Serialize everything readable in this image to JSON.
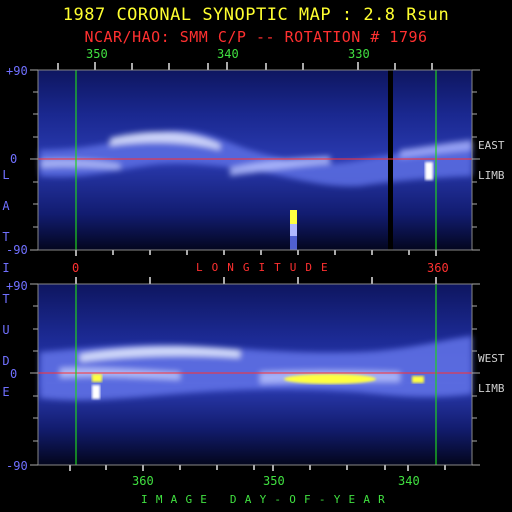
{
  "header": {
    "title": "1987 CORONAL SYNOPTIC MAP : 2.8 Rsun",
    "subtitle": "NCAR/HAO: SMM C/P -- ROTATION # 1796"
  },
  "top_panel": {
    "top_ticks": [
      "350",
      "340",
      "330"
    ],
    "y_ticks": [
      "+90",
      "0",
      "-90"
    ],
    "bottom_ticks": [
      "0",
      "360"
    ],
    "side_label_line1": "EAST",
    "side_label_line2": "LIMB"
  },
  "bottom_panel": {
    "y_ticks": [
      "+90",
      "0",
      "-90"
    ],
    "bottom_ticks": [
      "360",
      "350",
      "340"
    ],
    "side_label_line1": "WEST",
    "side_label_line2": "LIMB"
  },
  "axis_labels": {
    "longitude": "LONGITUDE",
    "latitude_letters": [
      "L",
      "A",
      "T",
      "I",
      "T",
      "U",
      "D",
      "E"
    ],
    "day_of_year": "IMAGE DAY-OF-YEAR"
  },
  "colors": {
    "map_background": "#1f2c9a",
    "bright_streamer": "#e8ecff",
    "saturated": "#ffff40",
    "equator_line": "#ff3030",
    "boundary_line": "#20d020"
  },
  "chart_data": [
    {
      "type": "heatmap",
      "title": "1987 CORONAL SYNOPTIC MAP : 2.8 Rsun",
      "subtitle": "NCAR/HAO: SMM C/P -- ROTATION # 1796",
      "xlabel": "LONGITUDE",
      "ylabel": "LATITUDE",
      "x_top_ticks": [
        350,
        340,
        330
      ],
      "x_bottom_ticks": [
        0,
        360
      ],
      "y_ticks": [
        90,
        0,
        -90
      ],
      "ylim": [
        -90,
        90
      ],
      "annotation": "EAST LIMB",
      "streamer_belt_latitude_deg": [
        [
          0,
          -6
        ],
        [
          30,
          -6
        ],
        [
          60,
          12
        ],
        [
          90,
          10
        ],
        [
          110,
          5
        ],
        [
          140,
          0
        ],
        [
          180,
          -10
        ],
        [
          210,
          -6
        ],
        [
          240,
          -4
        ],
        [
          270,
          -6
        ],
        [
          300,
          -8
        ],
        [
          330,
          -8
        ],
        [
          360,
          -10
        ]
      ]
    },
    {
      "type": "heatmap",
      "xlabel": "IMAGE DAY-OF-YEAR",
      "ylabel": "LATITUDE",
      "x_bottom_ticks": [
        360,
        350,
        340
      ],
      "y_ticks": [
        90,
        0,
        -90
      ],
      "ylim": [
        -90,
        90
      ],
      "annotation": "WEST LIMB",
      "streamer_belt_latitude_deg": [
        [
          0,
          8
        ],
        [
          30,
          10
        ],
        [
          60,
          18
        ],
        [
          90,
          12
        ],
        [
          120,
          10
        ],
        [
          150,
          8
        ],
        [
          180,
          2
        ],
        [
          210,
          0
        ],
        [
          240,
          0
        ],
        [
          270,
          3
        ],
        [
          300,
          8
        ],
        [
          330,
          12
        ],
        [
          360,
          14
        ]
      ]
    }
  ]
}
